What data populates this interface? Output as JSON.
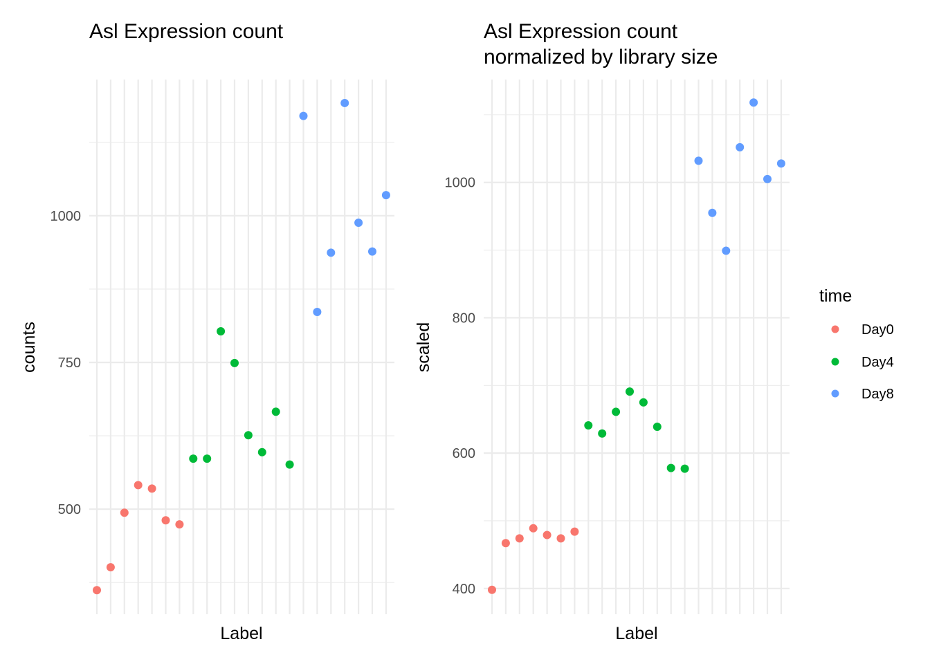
{
  "chart_data": [
    {
      "type": "scatter",
      "title": "Asl Expression count",
      "xlabel": "Label",
      "ylabel": "counts",
      "ylim": [
        321,
        1232
      ],
      "yticks": [
        500,
        750,
        1000
      ],
      "ytick_labels": [
        "500",
        "750",
        "1000"
      ],
      "yminor": [
        375,
        625,
        875,
        1125
      ],
      "x_categories_count": 22,
      "x_tick_labels_visible": false,
      "grid": true,
      "series": [
        {
          "name": "Day0",
          "x": [
            1,
            2,
            3,
            4,
            5,
            6,
            7
          ],
          "values": [
            362,
            401,
            494,
            541,
            535,
            481,
            474
          ]
        },
        {
          "name": "Day4",
          "x": [
            8,
            9,
            10,
            11,
            12,
            13,
            14,
            15
          ],
          "values": [
            586,
            586,
            803,
            749,
            626,
            597,
            666,
            576
          ]
        },
        {
          "name": "Day8",
          "x": [
            16,
            17,
            18,
            19,
            20,
            21,
            22
          ],
          "values": [
            1170,
            836,
            937,
            1192,
            988,
            939,
            1035
          ]
        }
      ]
    },
    {
      "type": "scatter",
      "title": "Asl Expression count",
      "subtitle": "normalized by library size",
      "xlabel": "Label",
      "ylabel": "scaled",
      "ylim": [
        362,
        1152
      ],
      "yticks": [
        400,
        600,
        800,
        1000
      ],
      "ytick_labels": [
        "400",
        "600",
        "800",
        "1000"
      ],
      "yminor": [
        500,
        700,
        900,
        1100
      ],
      "x_categories_count": 22,
      "x_tick_labels_visible": false,
      "grid": true,
      "series": [
        {
          "name": "Day0",
          "x": [
            1,
            2,
            3,
            4,
            5,
            6,
            7
          ],
          "values": [
            398,
            467,
            474,
            489,
            479,
            474,
            484
          ]
        },
        {
          "name": "Day4",
          "x": [
            8,
            9,
            10,
            11,
            12,
            13,
            14,
            15
          ],
          "values": [
            641,
            629,
            661,
            691,
            675,
            639,
            578,
            577
          ]
        },
        {
          "name": "Day8",
          "x": [
            16,
            17,
            18,
            19,
            20,
            21,
            22
          ],
          "values": [
            1032,
            955,
            899,
            1052,
            1118,
            1005,
            1028
          ]
        }
      ]
    }
  ],
  "legend": {
    "title": "time",
    "placement": "right",
    "items": [
      {
        "label": "Day0",
        "color": "#F8766D"
      },
      {
        "label": "Day4",
        "color": "#00BA38"
      },
      {
        "label": "Day8",
        "color": "#619CFF"
      }
    ]
  },
  "colors": {
    "Day0": "#F8766D",
    "Day4": "#00BA38",
    "Day8": "#619CFF",
    "grid": "#ebebeb"
  }
}
